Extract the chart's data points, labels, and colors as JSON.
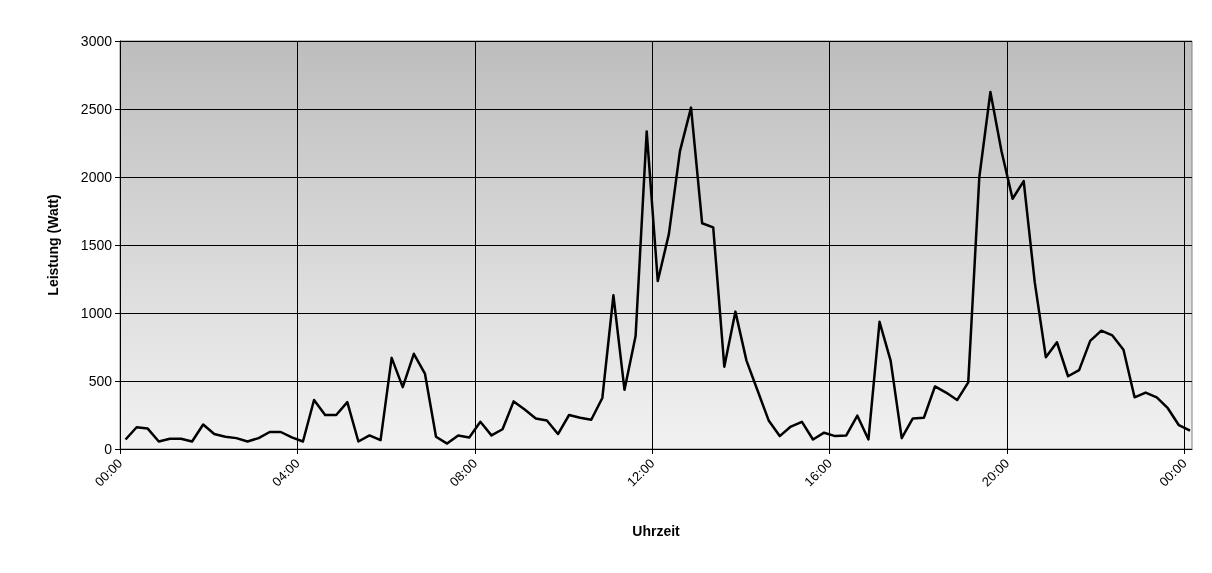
{
  "chart_data": {
    "type": "line",
    "xlabel": "Uhrzeit",
    "ylabel": "Leistung (Watt)",
    "x": [
      0.125,
      0.375,
      0.625,
      0.875,
      1.125,
      1.375,
      1.625,
      1.875,
      2.125,
      2.375,
      2.625,
      2.875,
      3.125,
      3.375,
      3.625,
      3.875,
      4.125,
      4.375,
      4.625,
      4.875,
      5.125,
      5.375,
      5.625,
      5.875,
      6.125,
      6.375,
      6.625,
      6.875,
      7.125,
      7.375,
      7.625,
      7.875,
      8.125,
      8.375,
      8.625,
      8.875,
      9.125,
      9.375,
      9.625,
      9.875,
      10.125,
      10.375,
      10.625,
      10.875,
      11.125,
      11.375,
      11.625,
      11.875,
      12.125,
      12.375,
      12.625,
      12.875,
      13.125,
      13.375,
      13.625,
      13.875,
      14.125,
      14.375,
      14.625,
      14.875,
      15.125,
      15.375,
      15.625,
      15.875,
      16.125,
      16.375,
      16.625,
      16.875,
      17.125,
      17.375,
      17.625,
      17.875,
      18.125,
      18.375,
      18.625,
      18.875,
      19.125,
      19.375,
      19.625,
      19.875,
      20.125,
      20.375,
      20.625,
      20.875,
      21.125,
      21.375,
      21.625,
      21.875,
      22.125,
      22.375,
      22.625,
      22.875,
      23.125,
      23.375,
      23.625,
      23.875,
      24.125
    ],
    "series": [
      {
        "color": "#000000",
        "values": [
          70,
          160,
          150,
          55,
          75,
          75,
          55,
          180,
          110,
          90,
          80,
          55,
          80,
          125,
          125,
          85,
          55,
          360,
          250,
          250,
          345,
          55,
          100,
          65,
          670,
          455,
          700,
          555,
          90,
          40,
          100,
          85,
          200,
          100,
          145,
          350,
          290,
          225,
          210,
          110,
          250,
          230,
          215,
          375,
          1130,
          435,
          830,
          2335,
          1235,
          1580,
          2190,
          2510,
          1660,
          1630,
          605,
          1010,
          650,
          430,
          210,
          95,
          165,
          200,
          70,
          120,
          95,
          100,
          245,
          70,
          935,
          650,
          80,
          225,
          230,
          460,
          415,
          360,
          490,
          2000,
          2625,
          2190,
          1840,
          1970,
          1225,
          675,
          785,
          535,
          580,
          795,
          870,
          835,
          730,
          380,
          415,
          380,
          300,
          175,
          135
        ]
      }
    ],
    "xlim": [
      0,
      24.17
    ],
    "xticks": [
      {
        "value": 0,
        "label": "00:00"
      },
      {
        "value": 4,
        "label": "04:00"
      },
      {
        "value": 8,
        "label": "08:00"
      },
      {
        "value": 12,
        "label": "12:00"
      },
      {
        "value": 16,
        "label": "16:00"
      },
      {
        "value": 20,
        "label": "20:00"
      },
      {
        "value": 24,
        "label": "00:00"
      }
    ],
    "ylim": [
      0,
      3000
    ],
    "yticks": [
      0,
      500,
      1000,
      1500,
      2000,
      2500,
      3000
    ],
    "grid": true,
    "marker": "none",
    "line_style": "solid"
  }
}
